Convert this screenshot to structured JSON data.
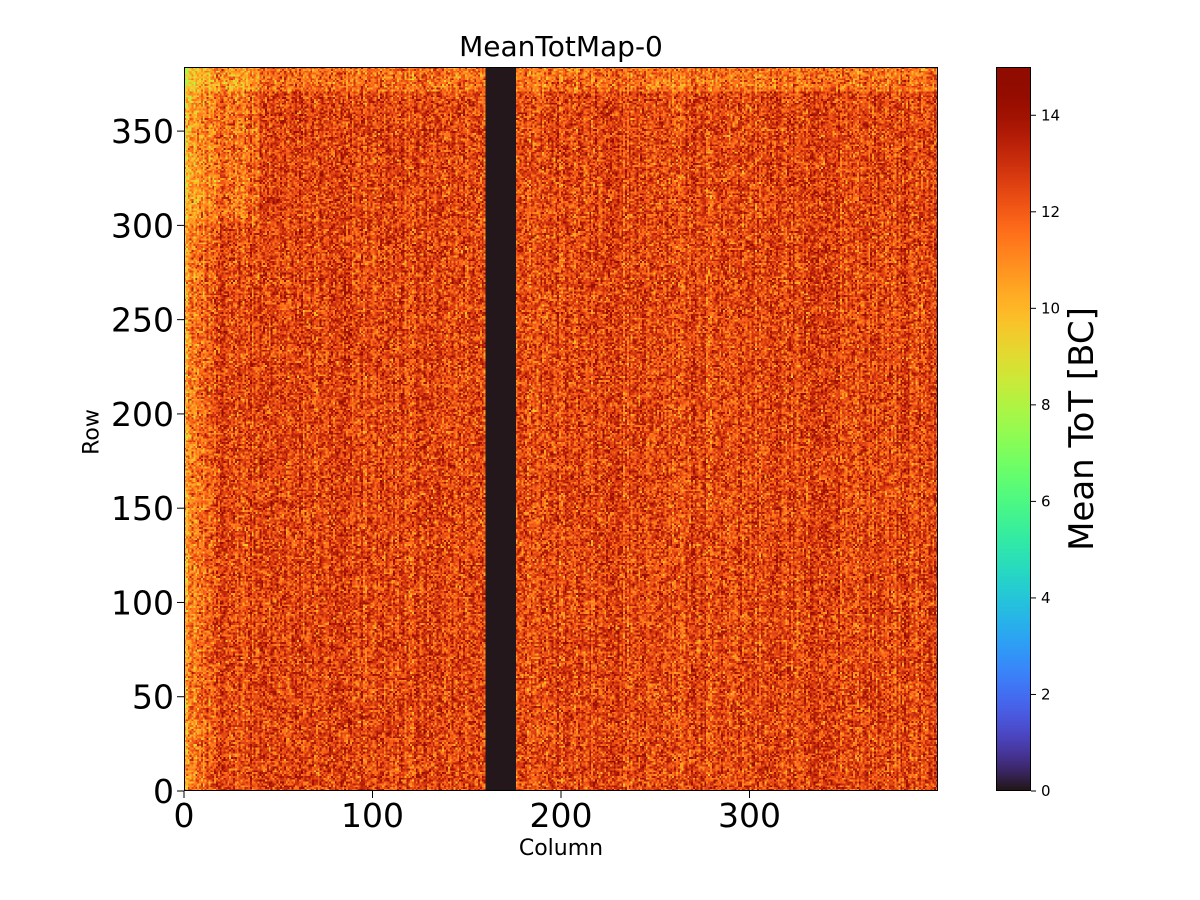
{
  "chart_data": {
    "type": "heatmap",
    "title": "MeanTotMap-0",
    "xlabel": "Column",
    "ylabel": "Row",
    "colorbar_label": "Mean ToT [BC]",
    "colormap": "turbo",
    "xlim": [
      0,
      400
    ],
    "ylim": [
      0,
      384
    ],
    "clim": [
      0,
      15
    ],
    "xticks": [
      0,
      100,
      200,
      300
    ],
    "yticks": [
      0,
      50,
      100,
      150,
      200,
      250,
      300,
      350
    ],
    "colorbar_ticks": [
      0,
      2,
      4,
      6,
      8,
      10,
      12,
      14
    ],
    "dead_column_range": [
      160,
      176
    ],
    "dead_value": 0,
    "typical_value_range": [
      10,
      14.5
    ],
    "typical_mean": 12.5
  }
}
